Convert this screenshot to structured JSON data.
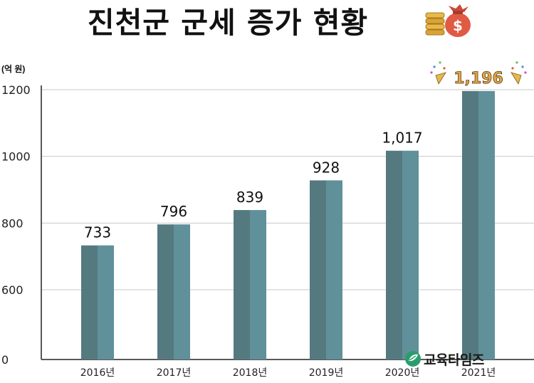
{
  "title": "진천군 군세 증가 현황",
  "unit_label": "(억 원)",
  "logo_text": "교육타임즈",
  "colors": {
    "bar_dark": "#547a80",
    "bar_light": "#60909a",
    "grid": "#c8c8c8",
    "axis": "#222222",
    "highlight_label": "#e0a84a"
  },
  "icons": [
    "coin-stack-icon",
    "money-bag-icon",
    "confetti-icon",
    "logo-leaf-icon"
  ],
  "chart_data": {
    "type": "bar",
    "categories": [
      "2016년",
      "2017년",
      "2018년",
      "2019년",
      "2020년",
      "2021년"
    ],
    "values": [
      733,
      796,
      839,
      928,
      1017,
      1196
    ],
    "value_labels": [
      "733",
      "796",
      "839",
      "928",
      "1,017",
      "1,196"
    ],
    "yticks": [
      0,
      600,
      800,
      1000,
      1200
    ],
    "highlight_index": 5,
    "grid": true,
    "legend": "none"
  }
}
